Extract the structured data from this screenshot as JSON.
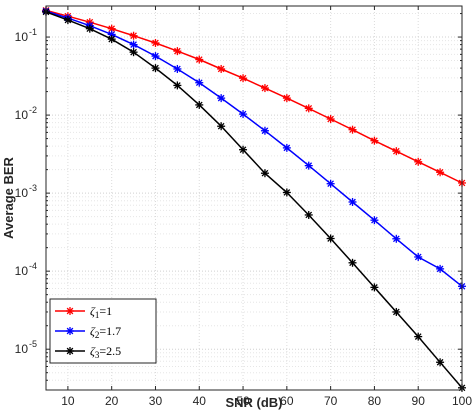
{
  "chart_data": {
    "type": "line",
    "xlabel": "SNR (dB)",
    "ylabel": "Average BER",
    "xlim": [
      5,
      100
    ],
    "ylim": [
      3e-06,
      0.25
    ],
    "yscale": "log",
    "grid": true,
    "xticks": [
      10,
      20,
      30,
      40,
      50,
      60,
      70,
      80,
      90,
      100
    ],
    "xtick_labels": [
      "10",
      "20",
      "30",
      "40",
      "50",
      "60",
      "70",
      "80",
      "90",
      "100"
    ],
    "yticks": [
      1e-05,
      0.0001,
      0.001,
      0.01,
      0.1
    ],
    "ytick_labels": [
      {
        "base": "10",
        "exp": "-5"
      },
      {
        "base": "10",
        "exp": "-4"
      },
      {
        "base": "10",
        "exp": "-3"
      },
      {
        "base": "10",
        "exp": "-2"
      },
      {
        "base": "10",
        "exp": "-1"
      }
    ],
    "legend_position": "bottom-left",
    "x": [
      5,
      10,
      15,
      20,
      25,
      30,
      35,
      40,
      45,
      50,
      55,
      60,
      65,
      70,
      75,
      80,
      85,
      90,
      95,
      100
    ],
    "series": [
      {
        "legend": {
          "sym": "ζ",
          "sub": "1",
          "val": "=1"
        },
        "color": "#ff0000",
        "marker": "asterisk",
        "values": [
          0.22,
          0.185,
          0.155,
          0.128,
          0.104,
          0.084,
          0.066,
          0.0515,
          0.039,
          0.0297,
          0.0222,
          0.0165,
          0.0122,
          0.0089,
          0.0065,
          0.0047,
          0.00345,
          0.00252,
          0.00185,
          0.00135
        ]
      },
      {
        "legend": {
          "sym": "ζ",
          "sub": "2",
          "val": "=1.7"
        },
        "color": "#0000ff",
        "marker": "asterisk",
        "values": [
          0.215,
          0.175,
          0.14,
          0.108,
          0.08,
          0.057,
          0.039,
          0.026,
          0.0165,
          0.0103,
          0.0063,
          0.0038,
          0.00225,
          0.00132,
          0.00077,
          0.00045,
          0.00026,
          0.000152,
          0.000107,
          6.4e-05
        ]
      },
      {
        "legend": {
          "sym": "ζ",
          "sub": "3",
          "val": "=2.5"
        },
        "color": "#000000",
        "marker": "asterisk",
        "values": [
          0.21,
          0.165,
          0.128,
          0.094,
          0.064,
          0.04,
          0.024,
          0.0135,
          0.0072,
          0.0036,
          0.0018,
          0.00102,
          0.000525,
          0.000262,
          0.000128,
          6.2e-05,
          3e-05,
          1.45e-05,
          6.8e-06,
          3.2e-06
        ]
      }
    ]
  }
}
